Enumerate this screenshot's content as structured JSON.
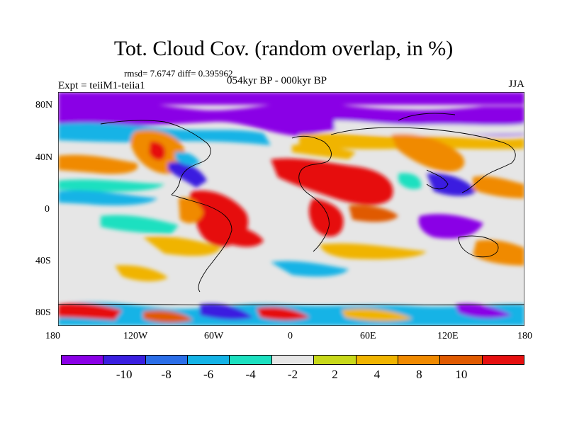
{
  "title": "Tot. Cloud Cov. (random overlap, in %)",
  "stats": "rmsd= 7.6747  diff= 0.395962",
  "experiment": "Expt = teiiM1-teiia1",
  "period": "054kyr BP - 000kyr BP",
  "season": "JJA",
  "lat_ticks": [
    "80N",
    "40N",
    "0",
    "40S",
    "80S"
  ],
  "lon_ticks": [
    "180",
    "120W",
    "60W",
    "0",
    "60E",
    "120E",
    "180"
  ],
  "colorbar": {
    "colors": [
      "#8a00e6",
      "#3a1fe0",
      "#2b6ee8",
      "#14b3e6",
      "#1ce0c0",
      "#e6e6e6",
      "#c8d81a",
      "#f0b400",
      "#f08a00",
      "#e05a00",
      "#e61010"
    ],
    "labels": [
      "-10",
      "-8",
      "-6",
      "-4",
      "-2",
      "2",
      "4",
      "8",
      "10"
    ]
  }
}
